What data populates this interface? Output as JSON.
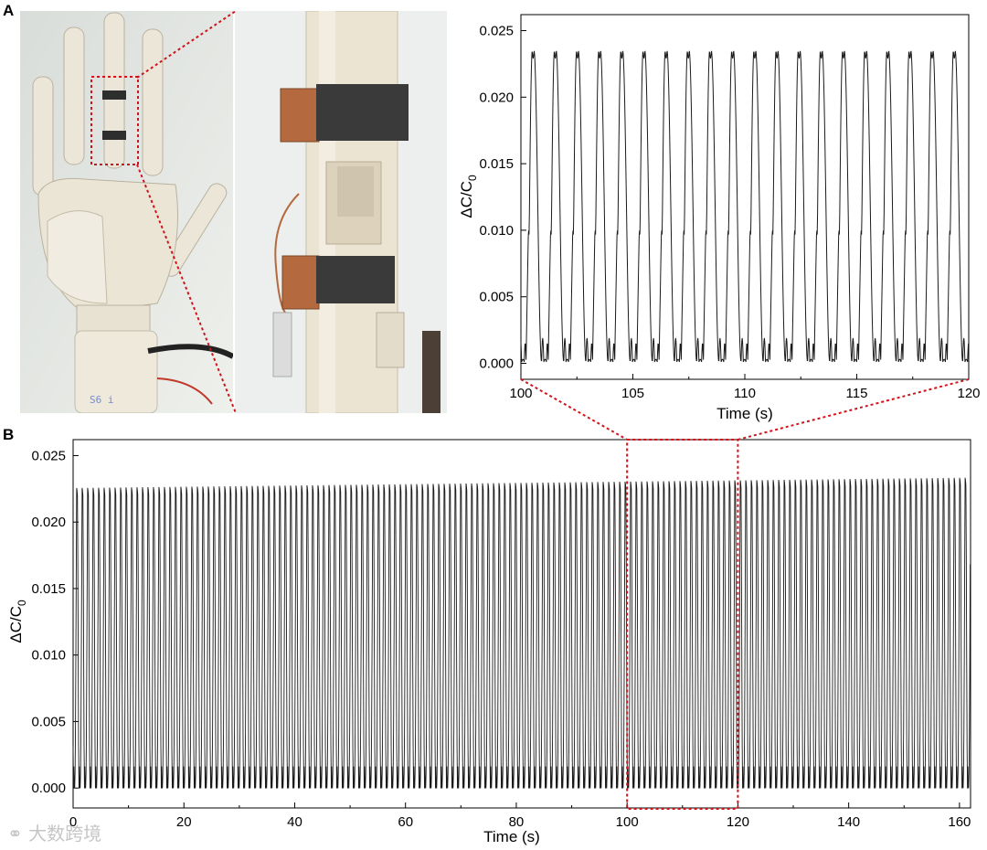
{
  "panels": {
    "a_label": "A",
    "b_label": "B"
  },
  "photo": {
    "sticker_text": "S6 i"
  },
  "watermark": {
    "text": "大数跨境"
  },
  "colors": {
    "line": "#1a1a1a",
    "zoom_box": "#d0141b",
    "copper": "#b46a3e",
    "fabric": "#3a3a3a",
    "robot": "#ece6d8"
  },
  "chart_data": [
    {
      "id": "A",
      "type": "line",
      "xlabel": "Time (s)",
      "ylabel": "ΔC/C",
      "ylabel_sub": "0",
      "xlim": [
        100,
        120
      ],
      "ylim": [
        -0.0012,
        0.0262
      ],
      "xticks": [
        100,
        105,
        110,
        115,
        120
      ],
      "yticks": [
        0.0,
        0.005,
        0.01,
        0.015,
        0.02,
        0.025
      ],
      "ytick_labels": [
        "0.000",
        "0.005",
        "0.010",
        "0.015",
        "0.020",
        "0.025"
      ],
      "series": [
        {
          "period_s": 0.99,
          "phase_s": 100.15,
          "peak": 0.0235,
          "trough": 0.0001,
          "shoulder": 0.0095
        }
      ]
    },
    {
      "id": "B",
      "type": "line",
      "xlabel": "Time (s)",
      "ylabel": "ΔC/C",
      "ylabel_sub": "0",
      "xlim": [
        0,
        162
      ],
      "ylim": [
        -0.0015,
        0.0262
      ],
      "xticks": [
        0,
        20,
        40,
        60,
        80,
        100,
        120,
        140,
        160
      ],
      "yticks": [
        0.0,
        0.005,
        0.01,
        0.015,
        0.02,
        0.025
      ],
      "ytick_labels": [
        "0.000",
        "0.005",
        "0.010",
        "0.015",
        "0.020",
        "0.025"
      ],
      "zoom_region": [
        100,
        120
      ],
      "series": [
        {
          "period_s": 0.99,
          "phase_s": 0.3,
          "peak_start": 0.0229,
          "peak_end": 0.0237,
          "trough": -0.0001,
          "shoulder": 0.0095
        }
      ]
    }
  ]
}
